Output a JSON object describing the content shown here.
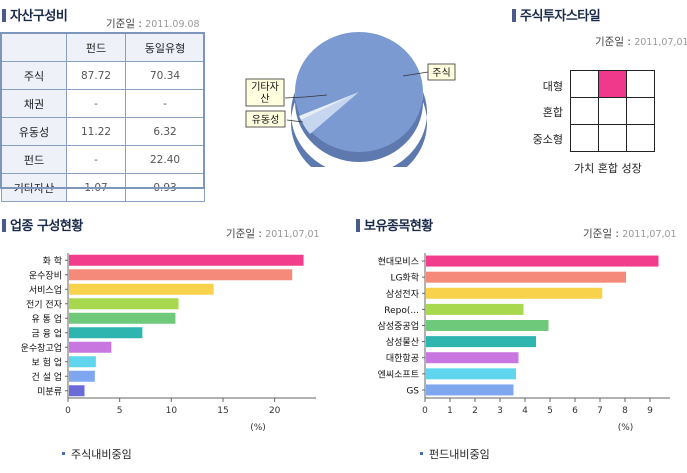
{
  "asset": {
    "title": "자산구성비",
    "base_label": "기준일",
    "base_date": "2011.09.08",
    "table": {
      "headers": [
        "",
        "펀드",
        "동일유형"
      ],
      "rows": [
        {
          "label": "주식",
          "fund": "87.72",
          "peer": "70.34"
        },
        {
          "label": "채권",
          "fund": "-",
          "peer": "-"
        },
        {
          "label": "유동성",
          "fund": "11.22",
          "peer": "6.32"
        },
        {
          "label": "펀드",
          "fund": "-",
          "peer": "22.40"
        },
        {
          "label": "기타자산",
          "fund": "1.07",
          "peer": "0.93"
        }
      ]
    },
    "pie_labels": {
      "stock": "주식",
      "other": "기타자\n산",
      "other_line1": "기타자",
      "other_line2": "산",
      "liquidity": "유동성"
    }
  },
  "style": {
    "title": "주식투자스타일",
    "base_label": "기준일",
    "base_date": "2011,07,01",
    "rows": [
      "대형",
      "혼합",
      "중소형"
    ],
    "cols": [
      "가치",
      "혼합",
      "성장"
    ],
    "col_labels_text": "가치 혼합 성장",
    "active_cell": {
      "row": 0,
      "col": 1
    },
    "active_color": "#f0398a"
  },
  "industry": {
    "title": "업종 구성현황",
    "base_label": "기준일",
    "base_date": "2011,07,01",
    "note": "주식내비중임",
    "chart_data": {
      "type": "bar",
      "orientation": "horizontal",
      "categories": [
        "화 학",
        "운수장비",
        "서비스업",
        "전기 전자",
        "유 통 업",
        "금 융 업",
        "운수창고업",
        "보 험 업",
        "건 설 업",
        "미분류"
      ],
      "values": [
        22.7,
        21.6,
        14.0,
        10.6,
        10.3,
        7.1,
        4.1,
        2.6,
        2.5,
        1.5
      ],
      "colors": [
        "#f23d8c",
        "#f68a7a",
        "#f7d24a",
        "#a8d84e",
        "#6fc97b",
        "#2fb5b0",
        "#c877e0",
        "#5fd6ee",
        "#7fa7ef",
        "#6a6bd8"
      ],
      "xlabel": "(%)",
      "xlim": [
        0,
        24
      ],
      "xticks": [
        0,
        5,
        10,
        15,
        20
      ]
    }
  },
  "holdings": {
    "title": "보유종목현황",
    "base_label": "기준일",
    "base_date": "2011,07,01",
    "note": "펀드내비중임",
    "chart_data": {
      "type": "bar",
      "orientation": "horizontal",
      "categories": [
        "현대모비스",
        "LG화학",
        "삼성전자",
        "Repo(...",
        "삼성중공업",
        "삼성물산",
        "대한항공",
        "엔씨소프트",
        "GS"
      ],
      "values": [
        9.3,
        8.0,
        7.05,
        3.9,
        4.9,
        4.4,
        3.7,
        3.6,
        3.5
      ],
      "colors": [
        "#f23d8c",
        "#f68a7a",
        "#f7d24a",
        "#a8d84e",
        "#6fc97b",
        "#2fb5b0",
        "#c877e0",
        "#5fd6ee",
        "#7fa7ef"
      ],
      "xlabel": "(%)",
      "xlim": [
        0,
        9.8
      ],
      "xticks": [
        0,
        1,
        2,
        3,
        4,
        5,
        6,
        7,
        8,
        9
      ]
    }
  }
}
